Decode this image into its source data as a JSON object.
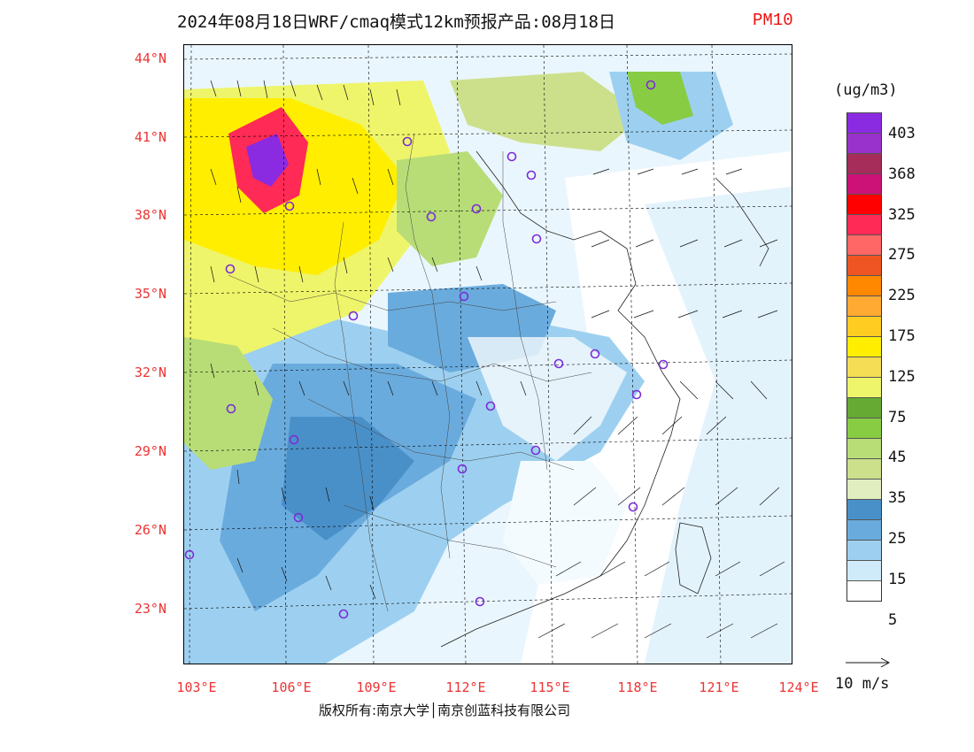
{
  "title": {
    "main": "2024年08月18日WRF/cmaq模式12km预报产品:08月18日",
    "pollutant": "PM10"
  },
  "map": {
    "lat_labels": [
      "44°N",
      "41°N",
      "38°N",
      "35°N",
      "32°N",
      "29°N",
      "26°N",
      "23°N"
    ],
    "lon_labels": [
      "103°E",
      "106°E",
      "109°E",
      "112°E",
      "115°E",
      "118°E",
      "121°E",
      "124°E"
    ]
  },
  "colorbar": {
    "unit": "(ug/m3)",
    "labels": [
      "403",
      "368",
      "325",
      "275",
      "225",
      "175",
      "125",
      "75",
      "45",
      "35",
      "25",
      "15",
      "5"
    ],
    "colors": [
      "#8a2be2",
      "#9932cc",
      "#a62c5a",
      "#cc1177",
      "#ff0000",
      "#ff2a55",
      "#ff6666",
      "#ee5522",
      "#ff8800",
      "#ffaa33",
      "#ffcc22",
      "#ffee00",
      "#f5dd55",
      "#eef56a",
      "#66aa33",
      "#88cc44",
      "#b8dd77",
      "#cce08c",
      "#e0eec0",
      "#4a90c8",
      "#6aabdd",
      "#9dd0f0",
      "#cfeaf8",
      "#ffffff"
    ]
  },
  "wind_ref": {
    "label": "10 m/s"
  },
  "copyright": "版权所有:南京大学│南京创蓝科技有限公司",
  "colors": {
    "label_red": "#e33333",
    "marker": "#7b2cd8"
  }
}
